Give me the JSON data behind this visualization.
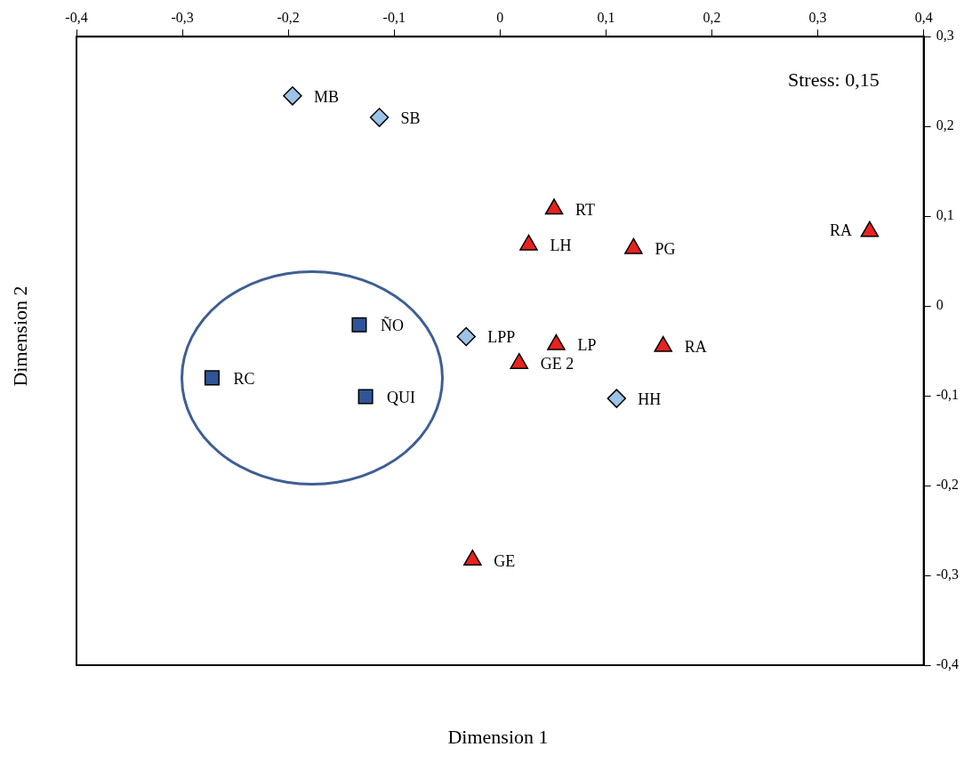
{
  "chart_data": {
    "type": "scatter",
    "xlabel": "Dimension 1",
    "ylabel": "Dimension 2",
    "xlim": [
      -0.4,
      0.4
    ],
    "ylim": [
      -0.4,
      0.3
    ],
    "xticks": [
      {
        "value": -0.4,
        "label": "-0,4"
      },
      {
        "value": -0.3,
        "label": "-0,3"
      },
      {
        "value": -0.2,
        "label": "-0,2"
      },
      {
        "value": -0.1,
        "label": "-0,1"
      },
      0,
      {
        "value": 0.1,
        "label": "0,1"
      },
      {
        "value": 0.2,
        "label": "0,2"
      },
      {
        "value": 0.3,
        "label": "0,3"
      },
      {
        "value": 0.4,
        "label": "0,4"
      }
    ],
    "yticks": [
      {
        "value": -0.4,
        "label": "-0,4"
      },
      {
        "value": -0.3,
        "label": "-0,3"
      },
      {
        "value": -0.2,
        "label": "-0,2"
      },
      {
        "value": -0.1,
        "label": "-0,1"
      },
      0,
      {
        "value": 0.1,
        "label": "0,1"
      },
      {
        "value": 0.2,
        "label": "0,2"
      },
      {
        "value": 0.3,
        "label": "0,3"
      }
    ],
    "grid": false,
    "legend": false,
    "series": [
      {
        "color": "#9dc3e6",
        "marker": "diamond",
        "x": [
          -0.196,
          -0.114,
          -0.032,
          0.11
        ],
        "values": [
          0.234,
          0.21,
          -0.034,
          -0.103
        ]
      },
      {
        "color": "#e8221f",
        "marker": "triangle",
        "x": [
          0.051,
          0.027,
          0.126,
          0.349,
          0.053,
          0.154,
          0.018,
          -0.026
        ],
        "values": [
          0.108,
          0.068,
          0.064,
          0.083,
          -0.043,
          -0.045,
          -0.064,
          -0.283
        ]
      },
      {
        "color": "#2e5597",
        "marker": "square",
        "x": [
          -0.133,
          -0.272,
          -0.127
        ],
        "values": [
          -0.021,
          -0.08,
          -0.101
        ]
      }
    ],
    "annotations": [
      "Stress: 0,15",
      {
        "text": "MB",
        "x": -0.196,
        "y": 0.234
      },
      {
        "text": "SB",
        "x": -0.114,
        "y": 0.21
      },
      {
        "text": "LPP",
        "x": -0.032,
        "y": -0.034
      },
      {
        "text": "HH",
        "x": 0.11,
        "y": -0.103
      },
      {
        "text": "RT",
        "x": 0.051,
        "y": 0.108
      },
      {
        "text": "LH",
        "x": 0.027,
        "y": 0.068
      },
      {
        "text": "PG",
        "x": 0.126,
        "y": 0.064
      },
      {
        "text": "RA",
        "x": 0.349,
        "y": 0.083
      },
      {
        "text": "LP",
        "x": 0.053,
        "y": -0.043
      },
      {
        "text": "RA",
        "x": 0.154,
        "y": -0.045
      },
      {
        "text": "GE 2",
        "x": 0.018,
        "y": -0.064
      },
      {
        "text": "GE",
        "x": -0.026,
        "y": -0.283
      },
      {
        "text": "ÑO",
        "x": -0.133,
        "y": -0.021
      },
      {
        "text": "RC",
        "x": -0.272,
        "y": -0.08
      },
      {
        "text": "QUI",
        "x": -0.127,
        "y": -0.101
      }
    ]
  }
}
